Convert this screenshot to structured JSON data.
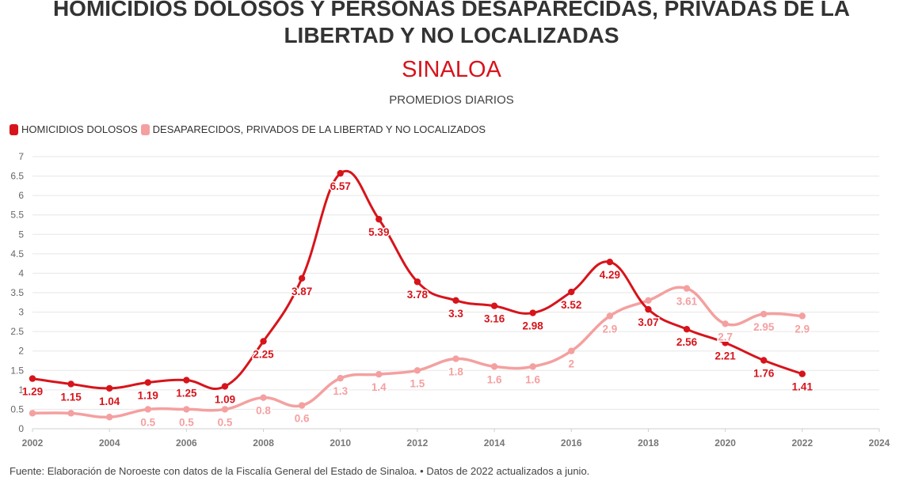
{
  "header": {
    "title_line1": "HOMICIDIOS DOLOSOS Y PERSONAS DESAPARECIDAS, PRIVADAS DE LA",
    "title_line2": "LIBERTAD Y NO LOCALIZADAS",
    "region": "SINALOA",
    "caption": "PROMEDIOS DIARIOS"
  },
  "source": "Fuente: Elaboración de Noroeste con datos de la Fiscalía General del Estado de Sinaloa. • Datos de 2022 actualizados a junio.",
  "colors": {
    "homicidios": "#d7141b",
    "desaparecidos": "#f4a0a0",
    "grid": "#e6e6e6",
    "axis_text": "#666666"
  },
  "chart_data": {
    "type": "line",
    "x": [
      2002,
      2003,
      2004,
      2005,
      2006,
      2007,
      2008,
      2009,
      2010,
      2011,
      2012,
      2013,
      2014,
      2015,
      2016,
      2017,
      2018,
      2019,
      2020,
      2021,
      2022
    ],
    "series": [
      {
        "name": "HOMICIDIOS DOLOSOS",
        "color": "#d7141b",
        "values": [
          1.29,
          1.15,
          1.04,
          1.19,
          1.25,
          1.09,
          2.25,
          3.87,
          6.57,
          5.39,
          3.78,
          3.3,
          3.16,
          2.98,
          3.52,
          4.29,
          3.07,
          2.56,
          2.21,
          1.76,
          1.41
        ],
        "labels": [
          "1.29",
          "1.15",
          "1.04",
          "1.19",
          "1.25",
          "1.09",
          "2.25",
          "3.87",
          "6.57",
          "5.39",
          "3.78",
          "3.3",
          "3.16",
          "2.98",
          "3.52",
          "4.29",
          "3.07",
          "2.56",
          "2.21",
          "1.76",
          "1.41"
        ]
      },
      {
        "name": "DESAPARECIDOS, PRIVADOS DE LA LIBERTAD Y NO LOCALIZADOS",
        "color": "#f4a0a0",
        "values": [
          0.4,
          0.4,
          0.3,
          0.5,
          0.5,
          0.5,
          0.8,
          0.6,
          1.3,
          1.4,
          1.5,
          1.8,
          1.6,
          1.6,
          2.0,
          2.9,
          3.3,
          3.61,
          2.7,
          2.95,
          2.9
        ],
        "labels": [
          "",
          "",
          "",
          "0.5",
          "0.5",
          "0.5",
          "0.8",
          "0.6",
          "1.3",
          "1.4",
          "1.5",
          "1.8",
          "1.6",
          "1.6",
          "2",
          "2.9",
          "",
          "3.61",
          "2.7",
          "2.95",
          "2.9"
        ]
      }
    ],
    "xlim": [
      2002,
      2024
    ],
    "xticks": [
      "2002",
      "2004",
      "2006",
      "2008",
      "2010",
      "2012",
      "2014",
      "2016",
      "2018",
      "2020",
      "2022",
      "2024"
    ],
    "ylim": [
      0,
      7
    ],
    "yticks": [
      "0",
      "0.5",
      "1",
      "1.5",
      "2",
      "2.5",
      "3",
      "3.5",
      "4",
      "4.5",
      "5",
      "5.5",
      "6",
      "6.5",
      "7"
    ],
    "grid": true,
    "legend_placement": "top-left",
    "xlabel": "",
    "ylabel": ""
  }
}
